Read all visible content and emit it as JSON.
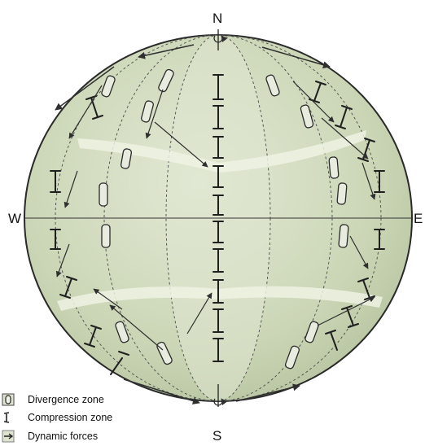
{
  "compass": {
    "north": "N",
    "south": "S",
    "east": "E",
    "west": "W"
  },
  "legend": [
    {
      "symbol": "divergence-symbol",
      "label": "Divergence zone"
    },
    {
      "symbol": "compression-symbol",
      "label": "Compression zone"
    },
    {
      "symbol": "arrow-symbol",
      "label": "Dynamic forces"
    }
  ],
  "colors": {
    "globe_fill": "#c9d4b4",
    "globe_light": "#e0e7d0",
    "line": "#3a3a3a",
    "arrow": "#2f2f2f"
  }
}
